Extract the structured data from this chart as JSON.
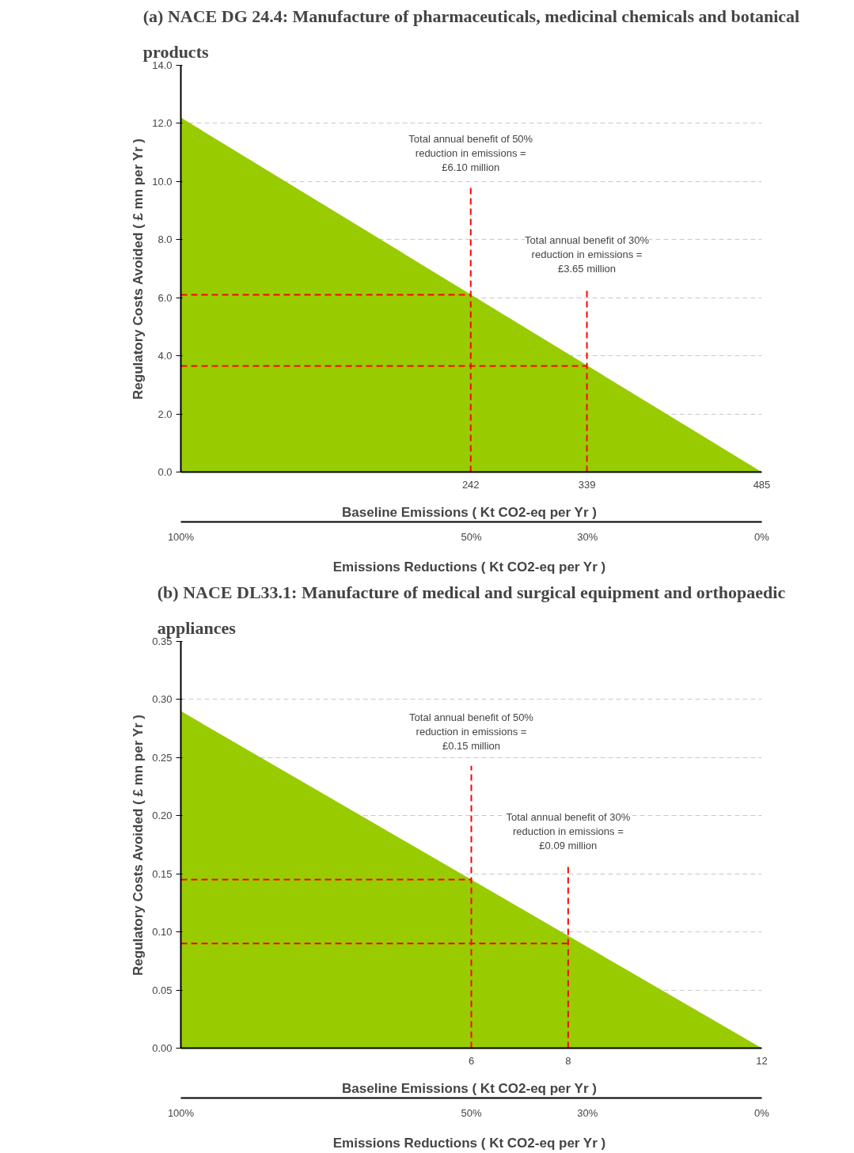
{
  "chart_data": [
    {
      "type": "area",
      "title": "(a) NACE DG 24.4: Manufacture of pharmaceuticals, medicinal chemicals and botanical products",
      "xlabel": "Baseline Emissions ( Kt  CO2-eq per Yr )",
      "ylabel": "Regulatory Costs Avoided ( £ mn per Yr )",
      "x2label": "Emissions Reductions ( Kt  CO2-eq per Yr )",
      "x": [
        0,
        485
      ],
      "values": [
        12.2,
        0
      ],
      "color": "#99cc00",
      "xlim": [
        0,
        485
      ],
      "ylim": [
        0,
        14
      ],
      "xticks": [
        242,
        339,
        485
      ],
      "yticks": [
        {
          "value": 0,
          "label": "0.0"
        },
        {
          "value": 2,
          "label": "2.0"
        },
        {
          "value": 4,
          "label": "4.0"
        },
        {
          "value": 6,
          "label": "6.0"
        },
        {
          "value": 8,
          "label": "8.0"
        },
        {
          "value": 10,
          "label": "10.0"
        },
        {
          "value": 12,
          "label": "12.0"
        },
        {
          "value": 14,
          "label": "14.0"
        }
      ],
      "x2lim": [
        100,
        0
      ],
      "x2ticks": [
        {
          "value": 100,
          "label": "100%"
        },
        {
          "value": 50,
          "label": "50%"
        },
        {
          "value": 30,
          "label": "30%"
        },
        {
          "value": 0,
          "label": "0%"
        }
      ],
      "grid": "y",
      "ref_lines": [
        {
          "axis": "x",
          "value": 242,
          "color": "#ff0000",
          "line_style": "dashed"
        },
        {
          "axis": "x",
          "value": 339,
          "color": "#ff0000",
          "line_style": "dashed"
        },
        {
          "axis": "y",
          "value": 6.1,
          "color": "#ff0000",
          "line_style": "dashed"
        },
        {
          "axis": "y",
          "value": 3.65,
          "color": "#ff0000",
          "line_style": "dashed"
        }
      ],
      "annotations": [
        {
          "text": "Total annual benefit of 50%\nreduction in emissions =\n£6.10 million",
          "x": 242,
          "y": 9.8
        },
        {
          "text": "Total annual benefit of 30%\nreduction in emissions =\n£3.65 million",
          "x": 339,
          "y": 6.3
        }
      ]
    },
    {
      "type": "area",
      "title": "(b) NACE DL33.1: Manufacture of medical and surgical equipment and orthopaedic appliances",
      "xlabel": "Baseline Emissions ( Kt  CO2-eq per Yr )",
      "ylabel": "Regulatory Costs Avoided ( £ mn per Yr )",
      "x2label": "Emissions Reductions ( Kt  CO2-eq per Yr )",
      "x": [
        0,
        12
      ],
      "values": [
        0.29,
        0
      ],
      "color": "#99cc00",
      "xlim": [
        0,
        12
      ],
      "ylim": [
        0,
        0.35
      ],
      "xticks": [
        6,
        8,
        12
      ],
      "yticks": [
        {
          "value": 0,
          "label": "0.00"
        },
        {
          "value": 0.05,
          "label": "0.05"
        },
        {
          "value": 0.1,
          "label": "0.10"
        },
        {
          "value": 0.15,
          "label": "0.15"
        },
        {
          "value": 0.2,
          "label": "0.20"
        },
        {
          "value": 0.25,
          "label": "0.25"
        },
        {
          "value": 0.3,
          "label": "0.30"
        },
        {
          "value": 0.35,
          "label": "0.35"
        }
      ],
      "x2lim": [
        100,
        0
      ],
      "x2ticks": [
        {
          "value": 100,
          "label": "100%"
        },
        {
          "value": 50,
          "label": "50%"
        },
        {
          "value": 30,
          "label": "30%"
        },
        {
          "value": 0,
          "label": "0%"
        }
      ],
      "grid": "y",
      "ref_lines": [
        {
          "axis": "x",
          "value": 6,
          "color": "#ff0000",
          "line_style": "dashed"
        },
        {
          "axis": "x",
          "value": 8,
          "color": "#ff0000",
          "line_style": "dashed"
        },
        {
          "axis": "y",
          "value": 0.145,
          "color": "#ff0000",
          "line_style": "dashed"
        },
        {
          "axis": "y",
          "value": 0.09,
          "color": "#ff0000",
          "line_style": "dashed"
        }
      ],
      "annotations": [
        {
          "text": "Total annual benefit of 50%\nreduction in emissions =\n£0.15 million",
          "x": 6,
          "y": 0.243
        },
        {
          "text": "Total annual benefit of 30%\nreduction in emissions =\n£0.09 million",
          "x": 8,
          "y": 0.157
        }
      ]
    }
  ]
}
